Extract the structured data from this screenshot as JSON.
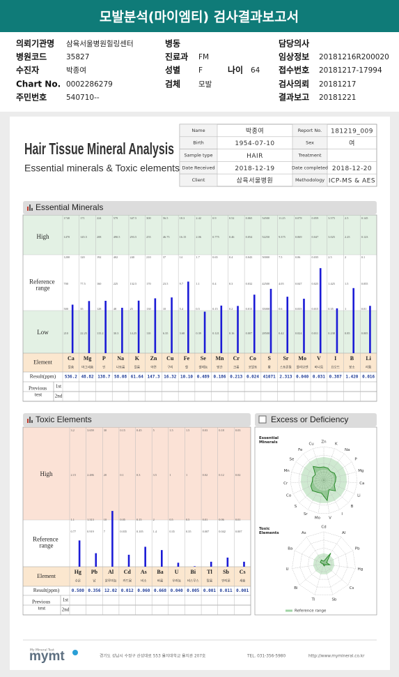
{
  "header": {
    "title": "모발분석(마이엠티) 검사결과보고서"
  },
  "patient": {
    "rows": [
      [
        {
          "label": "의뢰기관명",
          "value": "삼육서울병원힐링센터"
        },
        {
          "label": "병동"
        },
        {
          "label": "담당의사"
        }
      ],
      [
        {
          "label": "병원코드",
          "value": "35827"
        },
        {
          "label": "진료과",
          "value": "FM"
        },
        {
          "label": "임상정보",
          "value": "20181216R200020"
        }
      ],
      [
        {
          "label": "수진자",
          "value": "박종여"
        },
        {
          "label": "성별",
          "value": "F",
          "extra_label": "나이",
          "extra_value": "64"
        },
        {
          "label": "접수번호",
          "value": "20181217-17994"
        }
      ],
      [
        {
          "label": "Chart No.",
          "value": "0002286279"
        },
        {
          "label": "검체",
          "value": "모발"
        },
        {
          "label": "검사의뢰",
          "value": "20181217"
        }
      ],
      [
        {
          "label": "주민번호",
          "value": "540710--"
        },
        null,
        {
          "label": "결과보고",
          "value": "20181221"
        }
      ]
    ]
  },
  "report": {
    "title": "Hair Tissue Mineral Analysis",
    "subtitle": "Essential minerals & Toxic elements",
    "info": [
      [
        {
          "label": "Name",
          "value": "박종여"
        },
        {
          "label": "Report No.",
          "value": "181219_009"
        }
      ],
      [
        {
          "label": "Birth",
          "value": "1954-07-10"
        },
        {
          "label": "Sex",
          "value": "여"
        }
      ],
      [
        {
          "label": "Sample type",
          "value": "HAIR"
        },
        {
          "label": "Treatment"
        }
      ],
      [
        {
          "label": "Date Received",
          "value": "2018-12-19"
        },
        {
          "label": "Date completed",
          "value": "2018-12-20"
        }
      ],
      [
        {
          "label": "Client",
          "value": "삼육서울병원"
        },
        {
          "label": "Methodology",
          "value": "ICP-MS & AES"
        }
      ]
    ]
  },
  "essential": {
    "title": "Essential Minerals",
    "band_labels": [
      "High",
      "Reference range",
      "Low"
    ],
    "row_labels": {
      "element": "Element",
      "result": "Result(ppm)",
      "previous": "Previous test",
      "first": "1st",
      "second": "2nd"
    },
    "elements": [
      {
        "symbol": "Ca",
        "name": "칼슘",
        "scale": [
          "1740",
          "1470",
          "1200",
          "700",
          "500",
          "210"
        ],
        "result": "536.2"
      },
      {
        "symbol": "Mg",
        "name": "마그네슘",
        "scale": [
          "171",
          "145.5",
          "120",
          "77.5",
          "35",
          "22.25"
        ],
        "result": "48.82"
      },
      {
        "symbol": "P",
        "name": "인",
        "scale": [
          "224",
          "208",
          "192",
          "160",
          "128",
          "115.2"
        ],
        "result": "138.7"
      },
      {
        "symbol": "Na",
        "name": "나트륨",
        "scale": [
          "579",
          "490.5",
          "402",
          "225",
          "48",
          "30.3"
        ],
        "result": "58.08"
      },
      {
        "symbol": "K",
        "name": "칼륨",
        "scale": [
          "347.5",
          "293.5",
          "240",
          "132.5",
          "25",
          "14.25"
        ],
        "result": "61.64"
      },
      {
        "symbol": "Zn",
        "name": "아연",
        "scale": [
          "300",
          "255",
          "210",
          "170",
          "130",
          "110"
        ],
        "result": "147.3"
      },
      {
        "symbol": "Cu",
        "name": "구리",
        "scale": [
          "56.5",
          "46.75",
          "37",
          "23.5",
          "10",
          "6.35"
        ],
        "result": "16.32"
      },
      {
        "symbol": "Fe",
        "name": "철",
        "scale": [
          "18.3",
          "16.15",
          "14",
          "9.7",
          "5.4",
          "3.68"
        ],
        "result": "10.10"
      },
      {
        "symbol": "Se",
        "name": "셀레늄",
        "scale": [
          "2.42",
          "2.06",
          "1.7",
          "1.1",
          "0.5",
          "0.39"
        ],
        "result": "0.489"
      },
      {
        "symbol": "Mn",
        "name": "망간",
        "scale": [
          "0.9",
          "0.775",
          "0.65",
          "0.4",
          "0.15",
          "0.121"
        ],
        "result": "0.186"
      },
      {
        "symbol": "Cr",
        "name": "크롬",
        "scale": [
          "0.52",
          "0.46",
          "0.4",
          "0.3",
          "0.2",
          "0.16"
        ],
        "result": "0.213"
      },
      {
        "symbol": "Co",
        "name": "코발트",
        "scale": [
          "0.065",
          "0.054",
          "0.043",
          "0.032",
          "0.013",
          "0.007"
        ],
        "result": "0.024"
      },
      {
        "symbol": "S",
        "name": "황",
        "scale": [
          "54500",
          "52250",
          "50000",
          "42500",
          "35000",
          "28500"
        ],
        "result": "41071"
      },
      {
        "symbol": "Sr",
        "name": "스트론튬",
        "scale": [
          "11.25",
          "9.375",
          "7.5",
          "4.05",
          "0.6",
          "0.42"
        ],
        "result": "2.313"
      },
      {
        "symbol": "Mo",
        "name": "몰리브덴",
        "scale": [
          "0.078",
          "0.069",
          "0.06",
          "0.047",
          "0.035",
          "0.024"
        ],
        "result": "0.040"
      },
      {
        "symbol": "V",
        "name": "바나듐",
        "scale": [
          "0.059",
          "0.047",
          "0.035",
          "0.025",
          "0.015",
          "0.011"
        ],
        "result": "0.031"
      },
      {
        "symbol": "I",
        "name": "요오드",
        "scale": [
          "3.575",
          "3.025",
          "2.5",
          "1.425",
          "0.35",
          "0.238"
        ],
        "result": "0.387"
      },
      {
        "symbol": "B",
        "name": "붕소",
        "scale": [
          "2.5",
          "2.25",
          "2",
          "1.5",
          "1",
          "0.85"
        ],
        "result": "1.420"
      },
      {
        "symbol": "Li",
        "name": "리튬",
        "scale": [
          "0.145",
          "0.123",
          "0.1",
          "0.055",
          "0.01",
          "0.005"
        ],
        "result": "0.016"
      }
    ]
  },
  "toxic": {
    "title": "Toxic Elements",
    "band_labels": [
      "High",
      "Reference range"
    ],
    "row_labels": {
      "element": "Element",
      "result": "Result(ppm)",
      "previous": "Previous test",
      "first": "1st",
      "second": "2nd"
    },
    "elements": [
      {
        "symbol": "Hg",
        "name": "수은",
        "scale": [
          "3.2",
          "2.15",
          "1.1",
          "0.77"
        ],
        "result": "0.580"
      },
      {
        "symbol": "Pb",
        "name": "납",
        "scale": [
          "3.659",
          "2.486",
          "1.313",
          "0.919"
        ],
        "result": "0.356"
      },
      {
        "symbol": "Al",
        "name": "알루미늄",
        "scale": [
          "30",
          "20",
          "10",
          "7"
        ],
        "result": "12.02"
      },
      {
        "symbol": "Cd",
        "name": "카드뮴",
        "scale": [
          "0.15",
          "0.1",
          "0.05",
          "0.035"
        ],
        "result": "0.012"
      },
      {
        "symbol": "As",
        "name": "비소",
        "scale": [
          "0.45",
          "0.3",
          "0.15",
          "0.105"
        ],
        "result": "0.060"
      },
      {
        "symbol": "Ba",
        "name": "바륨",
        "scale": [
          "5",
          "3.5",
          "2",
          "1.4"
        ],
        "result": "0.668"
      },
      {
        "symbol": "U",
        "name": "우라늄",
        "scale": [
          "1.5",
          "1",
          "0.5",
          "0.35"
        ],
        "result": "0.040"
      },
      {
        "symbol": "Bi",
        "name": "비스무스",
        "scale": [
          "1.5",
          "1",
          "0.5",
          "0.35"
        ],
        "result": "0.005"
      },
      {
        "symbol": "Tl",
        "name": "탈륨",
        "scale": [
          "0.03",
          "0.02",
          "0.01",
          "0.007"
        ],
        "result": "0.001"
      },
      {
        "symbol": "Sb",
        "name": "안티몬",
        "scale": [
          "0.18",
          "0.12",
          "0.06",
          "0.042"
        ],
        "result": "0.011"
      },
      {
        "symbol": "Cs",
        "name": "세슘",
        "scale": [
          "0.03",
          "0.02",
          "0.01",
          "0.007"
        ],
        "result": "0.001"
      }
    ]
  },
  "excess": {
    "title": "Excess or Deficiency",
    "essential_label": "Essential Minerals",
    "toxic_label": "Toxic Elements",
    "legend": "Reference range"
  },
  "footer": {
    "logo": "mymt",
    "tagline": "My Mineral Test",
    "address": "경기도 성남시 수정구 산성대로 553 을지대학교 을지관 207호",
    "tel": "TEL. 031-356-5980",
    "url": "http://www.mymineral.co.kr"
  }
}
